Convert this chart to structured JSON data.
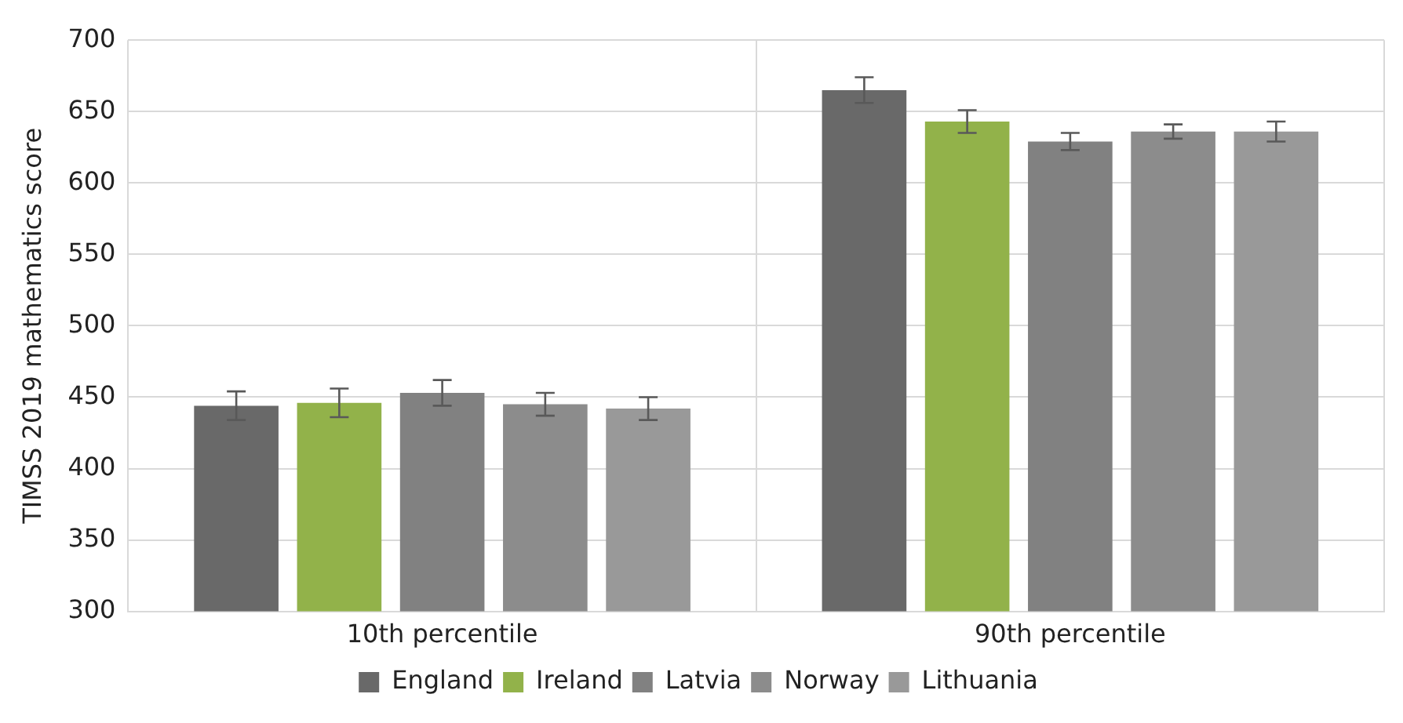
{
  "chart_data": {
    "type": "bar",
    "ylabel": "TIMSS 2019 mathematics score",
    "categories": [
      "10th percentile",
      "90th percentile"
    ],
    "series": [
      {
        "name": "England",
        "color": "#696969",
        "values": [
          444,
          665
        ],
        "errors": [
          10,
          9
        ]
      },
      {
        "name": "Ireland",
        "color": "#92b24a",
        "values": [
          446,
          643
        ],
        "errors": [
          10,
          8
        ]
      },
      {
        "name": "Latvia",
        "color": "#818181",
        "values": [
          453,
          629
        ],
        "errors": [
          9,
          6
        ]
      },
      {
        "name": "Norway",
        "color": "#8c8c8c",
        "values": [
          445,
          636
        ],
        "errors": [
          8,
          5
        ]
      },
      {
        "name": "Lithuania",
        "color": "#999999",
        "values": [
          442,
          636
        ],
        "errors": [
          8,
          7
        ]
      }
    ],
    "ylim": [
      300,
      700
    ],
    "yticks": [
      300,
      350,
      400,
      450,
      500,
      550,
      600,
      650,
      700
    ],
    "grid": true,
    "legend": "bottom"
  }
}
